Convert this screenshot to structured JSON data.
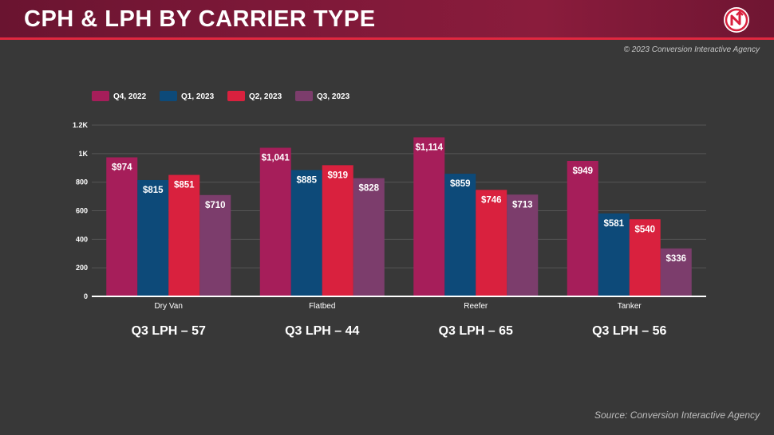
{
  "header": {
    "title": "CPH & LPH BY CARRIER TYPE",
    "logo_icon": "carrier-logo-icon"
  },
  "copyright": "© 2023 Conversion Interactive Agency",
  "source": "Source: Conversion Interactive Agency",
  "colors": {
    "header_bg": "#7d1838",
    "accent": "#e0283f",
    "q4_2022": "#a61e5a",
    "q1_2023": "#0d4a79",
    "q2_2023": "#d9213e",
    "q3_2023": "#7c3d6c"
  },
  "chart_data": {
    "type": "bar",
    "categories": [
      "Dry Van",
      "Flatbed",
      "Reefer",
      "Tanker"
    ],
    "series": [
      {
        "name": "Q4, 2022",
        "values": [
          974,
          1041,
          1114,
          949
        ],
        "labels": [
          "$974",
          "$1,041",
          "$1,114",
          "$949"
        ]
      },
      {
        "name": "Q1, 2023",
        "values": [
          815,
          885,
          859,
          581
        ],
        "labels": [
          "$815",
          "$885",
          "$859",
          "$581"
        ]
      },
      {
        "name": "Q2, 2023",
        "values": [
          851,
          919,
          746,
          540
        ],
        "labels": [
          "$851",
          "$919",
          "$746",
          "$540"
        ]
      },
      {
        "name": "Q3, 2023",
        "values": [
          710,
          828,
          713,
          336
        ],
        "labels": [
          "$710",
          "$828",
          "$713",
          "$336"
        ]
      }
    ],
    "ylim": [
      0,
      1200
    ],
    "yticks": [
      0,
      200,
      400,
      600,
      800,
      1000,
      1200
    ],
    "ytick_labels": [
      "0",
      "200",
      "400",
      "600",
      "800",
      "1K",
      "1.2K"
    ],
    "grid": true,
    "legend_placement": "top-left",
    "category_notes": [
      "Q3 LPH – 57",
      "Q3 LPH – 44",
      "Q3 LPH – 65",
      "Q3 LPH – 56"
    ]
  }
}
